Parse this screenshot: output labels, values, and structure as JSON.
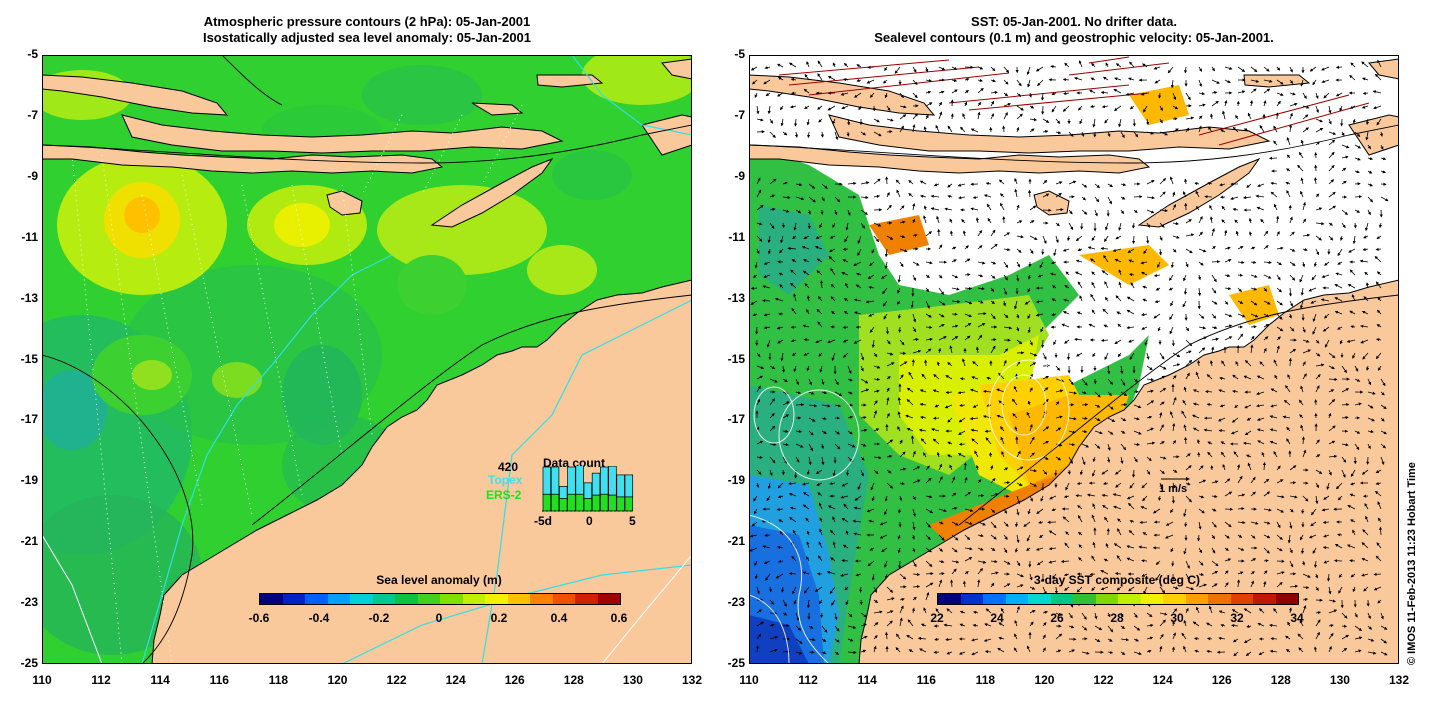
{
  "left_panel": {
    "title_line1": "Atmospheric pressure contours (2 hPa): 05-Jan-2001",
    "title_line2": "Isostatically adjusted sea level anomaly: 05-Jan-2001",
    "colorbar": {
      "title": "Sea level anomaly (m)",
      "ticks": [
        "-0.6",
        "-0.4",
        "-0.2",
        "0",
        "0.2",
        "0.4",
        "0.6"
      ],
      "colors": [
        "#00007f",
        "#0020c8",
        "#0060ff",
        "#00a0ff",
        "#00d0d8",
        "#00c890",
        "#10c040",
        "#40d020",
        "#80e000",
        "#c0f000",
        "#f0f000",
        "#ffc000",
        "#ff8000",
        "#f05000",
        "#d02000",
        "#a00000"
      ]
    },
    "inset": {
      "count": "420",
      "title": "Data count",
      "topex_label": "Topex",
      "ers_label": "ERS-2",
      "topex_color": "#40e0f0",
      "ers_color": "#20e020",
      "x_tick_left": "-5d",
      "x_tick_mid": "0",
      "x_tick_right": "5",
      "topex_fraction": [
        0.62,
        0.62,
        0.28,
        0.62,
        0.66,
        0.36,
        0.5,
        0.62,
        0.66,
        0.5,
        0.5
      ],
      "ers_fraction": [
        0.38,
        0.38,
        0.28,
        0.38,
        0.38,
        0.28,
        0.36,
        0.38,
        0.36,
        0.32,
        0.32
      ]
    }
  },
  "right_panel": {
    "title_line1": "SST: 05-Jan-2001. No drifter data.",
    "title_line2": "Sealevel contours (0.1 m) and geostrophic velocity: 05-Jan-2001.",
    "velocity_scale_label": "1 m/s",
    "colorbar": {
      "title": "3-day SST composite (deg C)",
      "ticks": [
        "22",
        "24",
        "26",
        "28",
        "30",
        "32",
        "34"
      ],
      "colors": [
        "#00007f",
        "#0030d0",
        "#0070ff",
        "#00b0ff",
        "#00d8d0",
        "#00c880",
        "#30c030",
        "#80d800",
        "#c0f000",
        "#f0f000",
        "#ffd000",
        "#ffa000",
        "#f07000",
        "#e04000",
        "#c01800",
        "#900000"
      ]
    },
    "credit": "© IMOS 11-Feb-2013 11:23 Hobart Time"
  },
  "axes": {
    "x_ticks": [
      "110",
      "112",
      "114",
      "116",
      "118",
      "120",
      "122",
      "124",
      "126",
      "128",
      "130",
      "132"
    ],
    "y_ticks": [
      "-5",
      "-7",
      "-9",
      "-11",
      "-13",
      "-15",
      "-17",
      "-19",
      "-21",
      "-23",
      "-25"
    ]
  },
  "colors": {
    "land": "#f9c89b",
    "sea_green": "#2fd02f",
    "sst_blue": "#1e78e6",
    "no_data": "#ffffff",
    "coast": "#000000"
  }
}
